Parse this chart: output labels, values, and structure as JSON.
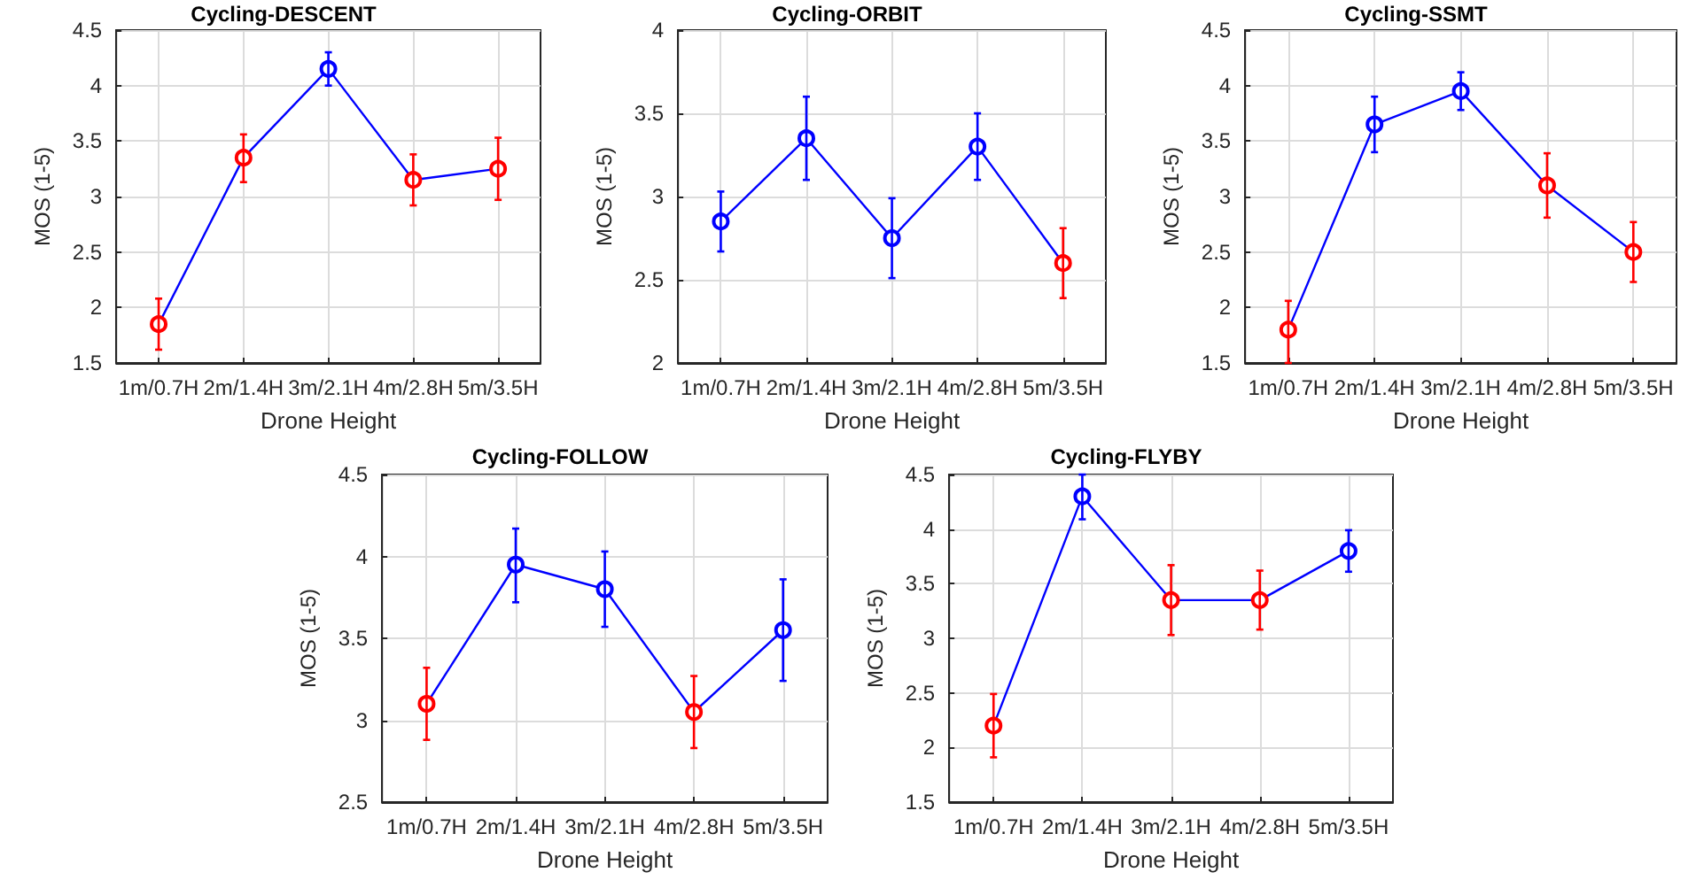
{
  "chart_data": [
    {
      "type": "line",
      "title": "Cycling-DESCENT",
      "xlabel": "Drone Height",
      "ylabel": "MOS (1-5)",
      "categories": [
        "1m/0.7H",
        "2m/1.4H",
        "3m/2.1H",
        "4m/2.8H",
        "5m/3.5H"
      ],
      "ylim": [
        1.5,
        4.5
      ],
      "yticks": [
        1.5,
        2,
        2.5,
        3,
        3.5,
        4,
        4.5
      ],
      "grid": true,
      "marker": "circle",
      "series": [
        {
          "color": "#0000ff",
          "colors": [
            "#ff0000",
            "#ff0000",
            "#0000ff",
            "#ff0000",
            "#ff0000"
          ],
          "values": [
            1.85,
            3.35,
            4.15,
            3.15,
            3.25
          ],
          "errors": [
            [
              1.62,
              2.08
            ],
            [
              3.13,
              3.56
            ],
            [
              4.0,
              4.3
            ],
            [
              2.92,
              3.38
            ],
            [
              2.97,
              3.53
            ]
          ]
        }
      ]
    },
    {
      "type": "line",
      "title": "Cycling-ORBIT",
      "xlabel": "Drone Height",
      "ylabel": "MOS (1-5)",
      "categories": [
        "1m/0.7H",
        "2m/1.4H",
        "3m/2.1H",
        "4m/2.8H",
        "5m/3.5H"
      ],
      "ylim": [
        2,
        4
      ],
      "yticks": [
        2,
        2.5,
        3,
        3.5,
        4
      ],
      "grid": true,
      "marker": "circle",
      "series": [
        {
          "color": "#0000ff",
          "colors": [
            "#0000ff",
            "#0000ff",
            "#0000ff",
            "#0000ff",
            "#ff0000"
          ],
          "values": [
            2.85,
            3.35,
            2.75,
            3.3,
            2.6
          ],
          "errors": [
            [
              2.67,
              3.03
            ],
            [
              3.1,
              3.6
            ],
            [
              2.51,
              2.99
            ],
            [
              3.1,
              3.5
            ],
            [
              2.39,
              2.81
            ]
          ]
        }
      ]
    },
    {
      "type": "line",
      "title": "Cycling-SSMT",
      "xlabel": "Drone Height",
      "ylabel": "MOS (1-5)",
      "categories": [
        "1m/0.7H",
        "2m/1.4H",
        "3m/2.1H",
        "4m/2.8H",
        "5m/3.5H"
      ],
      "ylim": [
        1.5,
        4.5
      ],
      "yticks": [
        1.5,
        2,
        2.5,
        3,
        3.5,
        4,
        4.5
      ],
      "grid": true,
      "marker": "circle",
      "series": [
        {
          "color": "#0000ff",
          "colors": [
            "#ff0000",
            "#0000ff",
            "#0000ff",
            "#ff0000",
            "#ff0000"
          ],
          "values": [
            1.8,
            3.65,
            3.95,
            3.1,
            2.5
          ],
          "errors": [
            [
              1.5,
              2.06
            ],
            [
              3.4,
              3.9
            ],
            [
              3.78,
              4.12
            ],
            [
              2.81,
              3.39
            ],
            [
              2.23,
              2.77
            ]
          ]
        }
      ]
    },
    {
      "type": "line",
      "title": "Cycling-FOLLOW",
      "xlabel": "Drone Height",
      "ylabel": "MOS (1-5)",
      "categories": [
        "1m/0.7H",
        "2m/1.4H",
        "3m/2.1H",
        "4m/2.8H",
        "5m/3.5H"
      ],
      "ylim": [
        2.5,
        4.5
      ],
      "yticks": [
        2.5,
        3,
        3.5,
        4,
        4.5
      ],
      "grid": true,
      "marker": "circle",
      "series": [
        {
          "color": "#0000ff",
          "colors": [
            "#ff0000",
            "#0000ff",
            "#0000ff",
            "#ff0000",
            "#0000ff"
          ],
          "values": [
            3.1,
            3.95,
            3.8,
            3.05,
            3.55
          ],
          "errors": [
            [
              2.88,
              3.32
            ],
            [
              3.72,
              4.17
            ],
            [
              3.57,
              4.03
            ],
            [
              2.83,
              3.27
            ],
            [
              3.24,
              3.86
            ]
          ]
        }
      ]
    },
    {
      "type": "line",
      "title": "Cycling-FLYBY",
      "xlabel": "Drone Height",
      "ylabel": "MOS (1-5)",
      "categories": [
        "1m/0.7H",
        "2m/1.4H",
        "3m/2.1H",
        "4m/2.8H",
        "5m/3.5H"
      ],
      "ylim": [
        1.5,
        4.5
      ],
      "yticks": [
        1.5,
        2,
        2.5,
        3,
        3.5,
        4,
        4.5
      ],
      "grid": true,
      "marker": "circle",
      "series": [
        {
          "color": "#0000ff",
          "colors": [
            "#ff0000",
            "#0000ff",
            "#ff0000",
            "#ff0000",
            "#0000ff"
          ],
          "values": [
            2.2,
            4.3,
            3.35,
            3.35,
            3.8
          ],
          "errors": [
            [
              1.91,
              2.49
            ],
            [
              4.09,
              4.5
            ],
            [
              3.03,
              3.67
            ],
            [
              3.08,
              3.62
            ],
            [
              3.61,
              3.99
            ]
          ]
        }
      ]
    }
  ]
}
